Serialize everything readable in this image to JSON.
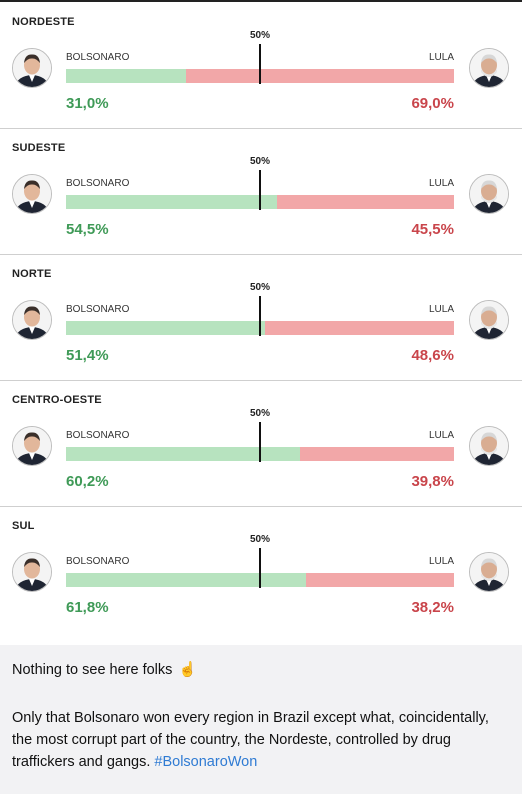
{
  "chart_data": {
    "type": "bar",
    "orientation": "horizontal-stacked-100",
    "reference_label": "50%",
    "reference_value": 50,
    "left_candidate": "BOLSONARO",
    "right_candidate": "LULA",
    "categories": [
      "NORDESTE",
      "SUDESTE",
      "NORTE",
      "CENTRO-OESTE",
      "SUL"
    ],
    "series": [
      {
        "name": "BOLSONARO",
        "values": [
          31.0,
          54.5,
          51.4,
          60.2,
          61.8
        ],
        "labels": [
          "31,0%",
          "54,5%",
          "51,4%",
          "60,2%",
          "61,8%"
        ]
      },
      {
        "name": "LULA",
        "values": [
          69.0,
          45.5,
          48.6,
          39.8,
          38.2
        ],
        "labels": [
          "69,0%",
          "45,5%",
          "48,6%",
          "39,8%",
          "38,2%"
        ]
      }
    ],
    "colors": {
      "left_bar": "#b7e3bf",
      "right_bar": "#f2a7a8",
      "left_text": "#3f9a57",
      "right_text": "#c9454b"
    }
  },
  "post": {
    "line1": "Nothing to see here folks",
    "emoji": "☝️",
    "body": "Only that Bolsonaro won every region in Brazil except what, coincidentally, the most corrupt part of the country, the Nordeste, controlled by drug traffickers and gangs.",
    "hashtag": "#BolsonaroWon"
  },
  "icons": {
    "left_avatar": "bolsonaro-avatar-icon",
    "right_avatar": "lula-avatar-icon"
  }
}
